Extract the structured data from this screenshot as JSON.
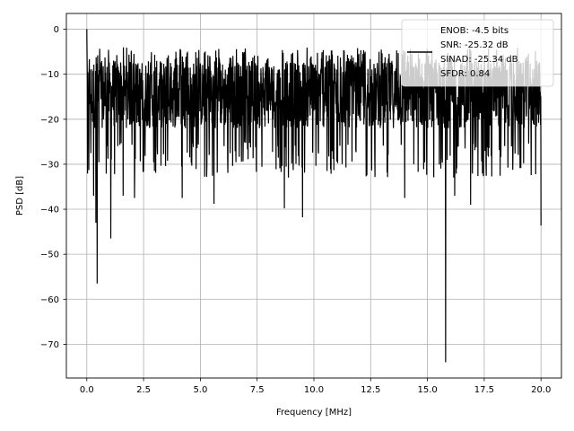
{
  "chart_data": {
    "type": "line",
    "xlabel": "Frequency [MHz]",
    "ylabel": "PSD [dB]",
    "xlim": [
      -0.9,
      20.9
    ],
    "ylim": [
      -77.5,
      3.5
    ],
    "xticks": [
      0.0,
      2.5,
      5.0,
      7.5,
      10.0,
      12.5,
      15.0,
      17.5,
      20.0
    ],
    "xtick_labels": [
      "0.0",
      "2.5",
      "5.0",
      "7.5",
      "10.0",
      "12.5",
      "15.0",
      "17.5",
      "20.0"
    ],
    "yticks": [
      0,
      -10,
      -20,
      -30,
      -40,
      -50,
      -60,
      -70
    ],
    "ytick_labels": [
      "0",
      "−10",
      "−20",
      "−30",
      "−40",
      "−50",
      "−60",
      "−70"
    ],
    "grid": true,
    "legend_placement": "top-right",
    "legend_entries": [
      "ENOB: -4.5 bits",
      "SNR: -25.32 dB",
      "SINAD: -25.34 dB",
      "SFDR: 0.84"
    ],
    "series": [
      {
        "color": "#000000",
        "x_range": [
          0.0,
          20.0
        ],
        "typical_band": [
          -22,
          -7
        ],
        "peak_max": 0.0,
        "notable_minima": [
          {
            "x": 0.3,
            "y": -37
          },
          {
            "x": 0.4,
            "y": -43
          },
          {
            "x": 0.45,
            "y": -56.5
          },
          {
            "x": 1.05,
            "y": -46.5
          },
          {
            "x": 1.6,
            "y": -37
          },
          {
            "x": 2.1,
            "y": -37.5
          },
          {
            "x": 4.2,
            "y": -37.5
          },
          {
            "x": 5.6,
            "y": -38.8
          },
          {
            "x": 8.7,
            "y": -39.8
          },
          {
            "x": 9.5,
            "y": -41.8
          },
          {
            "x": 14.0,
            "y": -37.5
          },
          {
            "x": 15.8,
            "y": -74
          },
          {
            "x": 16.2,
            "y": -37
          },
          {
            "x": 16.9,
            "y": -39
          },
          {
            "x": 20.0,
            "y": -43.6
          }
        ]
      }
    ]
  }
}
